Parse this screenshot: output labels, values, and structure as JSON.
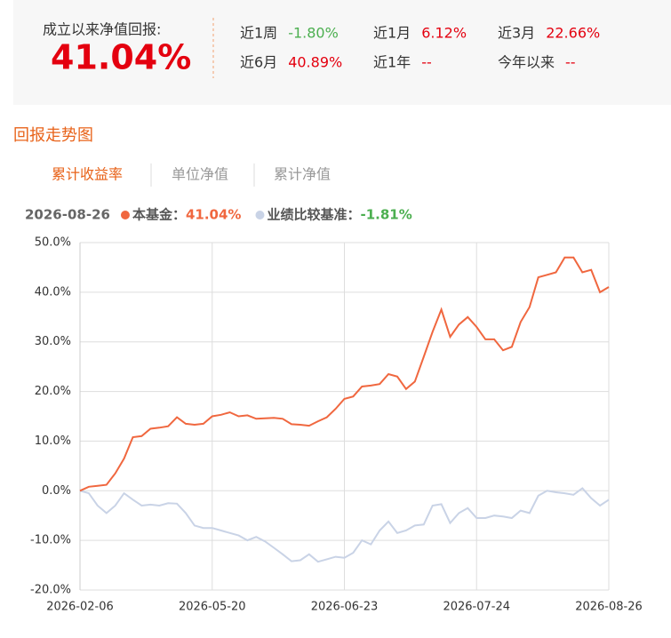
{
  "header": {
    "title": "成立以来净值回报:",
    "total_return": "41.04%",
    "stats": [
      {
        "label": "近1周",
        "value": "-1.80%",
        "color": "#4caf50"
      },
      {
        "label": "近1月",
        "value": "6.12%",
        "color": "#e4000f"
      },
      {
        "label": "近3月",
        "value": "22.66%",
        "color": "#e4000f"
      },
      {
        "label": "近6月",
        "value": "40.89%",
        "color": "#e4000f"
      },
      {
        "label": "近1年",
        "value": "--",
        "color": "#e4000f"
      },
      {
        "label": "今年以来",
        "value": "--",
        "color": "#e4000f"
      }
    ]
  },
  "section_title": "回报走势图",
  "tabs": [
    "累计收益率",
    "单位净值",
    "累计净值"
  ],
  "active_tab": 0,
  "chart_data": {
    "type": "line",
    "tooltip": {
      "date": "2026-08-26",
      "separator": "：",
      "value_labels": [
        "41.04%",
        "-1.81%"
      ]
    },
    "categories": [
      "2026-02-06",
      null,
      null,
      null,
      null,
      null,
      null,
      null,
      null,
      null,
      null,
      null,
      null,
      null,
      null,
      "2026-05-20",
      null,
      null,
      null,
      null,
      null,
      null,
      null,
      null,
      null,
      null,
      null,
      null,
      null,
      null,
      "2026-06-23",
      null,
      null,
      null,
      null,
      null,
      null,
      null,
      null,
      null,
      null,
      null,
      null,
      null,
      null,
      "2026-07-24",
      null,
      null,
      null,
      null,
      null,
      null,
      null,
      null,
      null,
      null,
      null,
      null,
      null,
      null,
      "2026-08-26"
    ],
    "series": [
      {
        "name": "本基金",
        "color": "#f0673f",
        "values": [
          0,
          0.8,
          1,
          1.2,
          3.5,
          6.5,
          10.8,
          11,
          12.5,
          12.7,
          13,
          14.8,
          13.5,
          13.3,
          13.5,
          15,
          15.3,
          15.8,
          15,
          15.2,
          14.5,
          14.6,
          14.7,
          14.5,
          13.4,
          13.3,
          13.1,
          14,
          14.8,
          16.5,
          18.5,
          19,
          21,
          21.2,
          21.5,
          23.5,
          23,
          20.5,
          22,
          27,
          32,
          36.5,
          31,
          33.5,
          35,
          33,
          30.5,
          30.5,
          28.3,
          29,
          34,
          37,
          43,
          43.5,
          44,
          47,
          47,
          44,
          44.5,
          40,
          41.04
        ]
      },
      {
        "name": "业绩比较基准",
        "color": "#c9d3e6",
        "values": [
          0,
          -0.5,
          -3,
          -4.5,
          -3,
          -0.5,
          -1.8,
          -3,
          -2.8,
          -3,
          -2.5,
          -2.6,
          -4.5,
          -7,
          -7.5,
          -7.5,
          -8,
          -8.5,
          -9,
          -10,
          -9.3,
          -10.2,
          -11.5,
          -12.8,
          -14.2,
          -14,
          -12.8,
          -14.3,
          -13.8,
          -13.3,
          -13.5,
          -12.5,
          -10,
          -10.8,
          -8,
          -6.2,
          -8.5,
          -8,
          -7,
          -6.8,
          -3,
          -2.7,
          -6.5,
          -4.5,
          -3.5,
          -5.5,
          -5.5,
          -5,
          -5.2,
          -5.5,
          -4,
          -4.5,
          -1,
          0,
          -0.3,
          -0.5,
          -0.8,
          0.5,
          -1.5,
          -3,
          -1.81
        ]
      }
    ],
    "ylim": [
      -20,
      50
    ],
    "yticks": [
      {
        "value": -20,
        "label": "-20.0%"
      },
      {
        "value": -10,
        "label": "-10.0%"
      },
      {
        "value": 0,
        "label": "0.0%"
      },
      {
        "value": 10,
        "label": "10.0%"
      },
      {
        "value": 20,
        "label": "20.0%"
      },
      {
        "value": 30,
        "label": "30.0%"
      },
      {
        "value": 40,
        "label": "40.0%"
      },
      {
        "value": 50,
        "label": "50.0%"
      }
    ],
    "grid": true
  }
}
